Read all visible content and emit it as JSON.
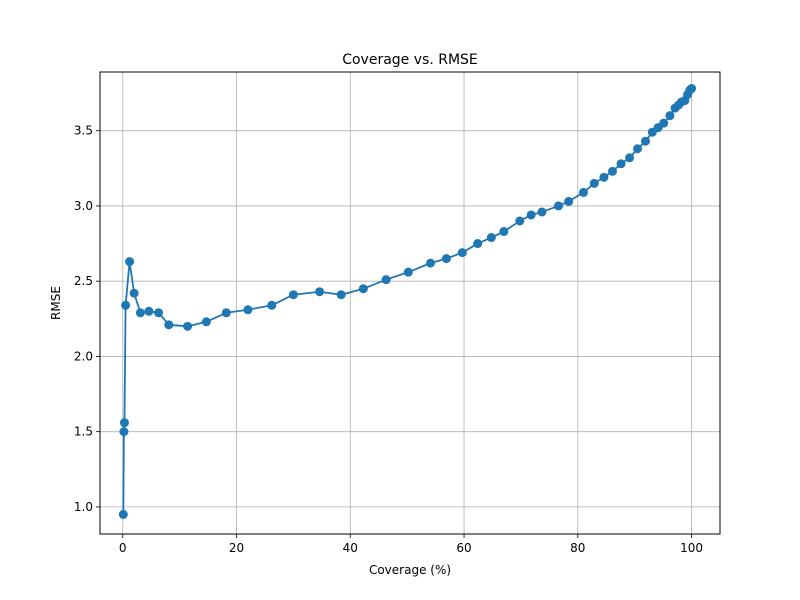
{
  "chart_data": {
    "type": "line",
    "title": "Coverage vs. RMSE",
    "xlabel": "Coverage (%)",
    "ylabel": "RMSE",
    "xlim": [
      -4,
      105
    ],
    "ylim": [
      0.82,
      3.89
    ],
    "xticks": [
      0,
      20,
      40,
      60,
      80,
      100
    ],
    "yticks": [
      1.0,
      1.5,
      2.0,
      2.5,
      3.0,
      3.5
    ],
    "xtick_labels": [
      "0",
      "20",
      "40",
      "60",
      "80",
      "100"
    ],
    "ytick_labels": [
      "1.0",
      "1.5",
      "2.0",
      "2.5",
      "3.0",
      "3.5"
    ],
    "grid": true,
    "series": [
      {
        "color": "#1f77b4",
        "marker": "circle",
        "x": [
          0.1,
          0.2,
          0.3,
          0.5,
          1.2,
          2.0,
          3.1,
          4.6,
          6.3,
          8.1,
          11.4,
          14.7,
          18.2,
          22.0,
          26.2,
          30.0,
          34.6,
          38.4,
          42.3,
          46.3,
          50.2,
          54.1,
          56.9,
          59.7,
          62.4,
          64.8,
          67.0,
          69.8,
          71.8,
          73.7,
          76.6,
          78.4,
          81.0,
          82.9,
          84.6,
          86.1,
          87.6,
          89.1,
          90.5,
          91.9,
          93.1,
          94.1,
          95.1,
          96.2,
          97.1,
          97.7,
          98.2,
          98.8,
          99.3,
          99.7,
          100.0
        ],
        "y": [
          0.95,
          1.5,
          1.56,
          2.34,
          2.63,
          2.42,
          2.29,
          2.3,
          2.29,
          2.21,
          2.2,
          2.23,
          2.29,
          2.31,
          2.34,
          2.41,
          2.43,
          2.41,
          2.45,
          2.51,
          2.56,
          2.62,
          2.65,
          2.69,
          2.75,
          2.79,
          2.83,
          2.9,
          2.94,
          2.96,
          3.0,
          3.03,
          3.09,
          3.15,
          3.19,
          3.23,
          3.28,
          3.32,
          3.38,
          3.43,
          3.49,
          3.52,
          3.55,
          3.6,
          3.65,
          3.67,
          3.69,
          3.7,
          3.74,
          3.77,
          3.78
        ]
      }
    ]
  }
}
